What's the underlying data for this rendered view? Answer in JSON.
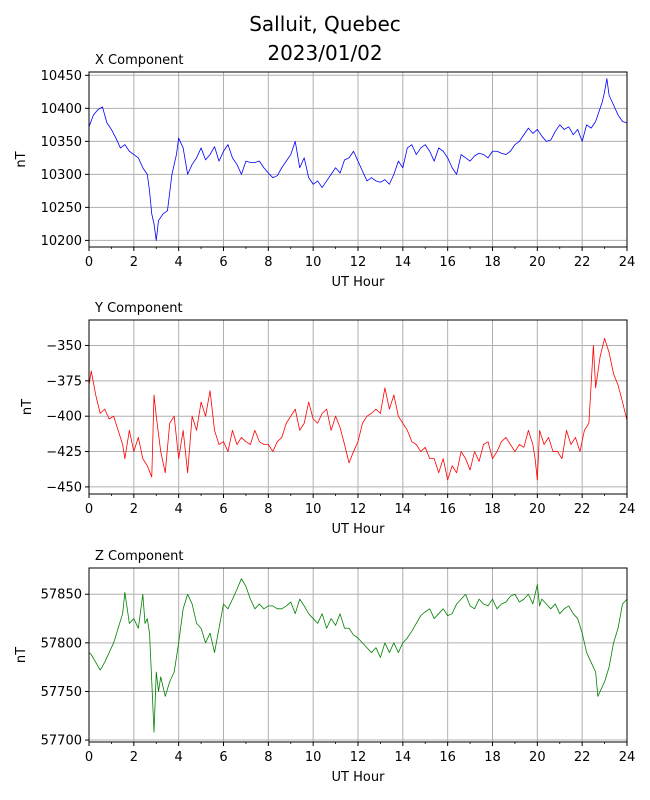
{
  "figure": {
    "title_line1": "Salluit, Quebec",
    "title_line2": "2023/01/02"
  },
  "chart_data": [
    {
      "type": "line",
      "title": "X Component",
      "xlabel": "UT Hour",
      "ylabel": "nT",
      "color": "#0000ff",
      "xlim": [
        0,
        24
      ],
      "ylim": [
        10190,
        10455
      ],
      "xticks": [
        0,
        2,
        4,
        6,
        8,
        10,
        12,
        14,
        16,
        18,
        20,
        22,
        24
      ],
      "yticks": [
        10200,
        10250,
        10300,
        10350,
        10400,
        10450
      ],
      "ytick_labels": [
        "10200",
        "10250",
        "10300",
        "10350",
        "10400",
        "10450"
      ],
      "grid": true,
      "x": [
        0,
        0.2,
        0.4,
        0.6,
        0.8,
        1.0,
        1.2,
        1.4,
        1.6,
        1.8,
        2.0,
        2.2,
        2.4,
        2.6,
        2.7,
        2.8,
        2.9,
        3.0,
        3.1,
        3.3,
        3.5,
        3.7,
        3.9,
        4.0,
        4.2,
        4.4,
        4.6,
        4.8,
        5.0,
        5.2,
        5.4,
        5.6,
        5.8,
        6.0,
        6.2,
        6.4,
        6.6,
        6.8,
        7.0,
        7.2,
        7.4,
        7.6,
        7.8,
        8.0,
        8.2,
        8.4,
        8.6,
        8.8,
        9.0,
        9.2,
        9.4,
        9.6,
        9.8,
        10.0,
        10.2,
        10.4,
        10.6,
        10.8,
        11.0,
        11.2,
        11.4,
        11.6,
        11.8,
        12.0,
        12.2,
        12.4,
        12.6,
        12.8,
        13.0,
        13.2,
        13.4,
        13.6,
        13.8,
        14.0,
        14.2,
        14.4,
        14.6,
        14.8,
        15.0,
        15.2,
        15.4,
        15.6,
        15.8,
        16.0,
        16.2,
        16.4,
        16.6,
        16.8,
        17.0,
        17.2,
        17.4,
        17.6,
        17.8,
        18.0,
        18.2,
        18.4,
        18.6,
        18.8,
        19.0,
        19.2,
        19.4,
        19.6,
        19.8,
        20.0,
        20.2,
        20.4,
        20.6,
        20.8,
        21.0,
        21.2,
        21.4,
        21.6,
        21.8,
        22.0,
        22.2,
        22.4,
        22.6,
        22.8,
        22.9,
        23.0,
        23.1,
        23.2,
        23.4,
        23.6,
        23.8,
        24.0
      ],
      "values": [
        10372,
        10390,
        10398,
        10402,
        10378,
        10368,
        10355,
        10340,
        10345,
        10335,
        10330,
        10325,
        10310,
        10300,
        10275,
        10240,
        10225,
        10200,
        10230,
        10240,
        10245,
        10300,
        10330,
        10355,
        10340,
        10300,
        10315,
        10325,
        10340,
        10322,
        10330,
        10342,
        10320,
        10335,
        10345,
        10325,
        10315,
        10300,
        10320,
        10318,
        10318,
        10320,
        10310,
        10302,
        10295,
        10298,
        10310,
        10320,
        10330,
        10350,
        10310,
        10325,
        10295,
        10285,
        10290,
        10280,
        10290,
        10300,
        10310,
        10302,
        10322,
        10325,
        10335,
        10320,
        10305,
        10290,
        10295,
        10290,
        10288,
        10292,
        10285,
        10300,
        10320,
        10310,
        10340,
        10345,
        10330,
        10340,
        10345,
        10335,
        10320,
        10340,
        10335,
        10325,
        10310,
        10300,
        10330,
        10325,
        10320,
        10328,
        10332,
        10330,
        10325,
        10335,
        10335,
        10332,
        10330,
        10335,
        10345,
        10350,
        10360,
        10370,
        10362,
        10368,
        10358,
        10350,
        10352,
        10365,
        10375,
        10368,
        10372,
        10360,
        10368,
        10350,
        10375,
        10370,
        10380,
        10400,
        10410,
        10425,
        10445,
        10420,
        10405,
        10390,
        10380,
        10378
      ]
    },
    {
      "type": "line",
      "title": "Y Component",
      "xlabel": "UT Hour",
      "ylabel": "nT",
      "color": "#ff0000",
      "xlim": [
        0,
        24
      ],
      "ylim": [
        -455,
        -332
      ],
      "xticks": [
        0,
        2,
        4,
        6,
        8,
        10,
        12,
        14,
        16,
        18,
        20,
        22,
        24
      ],
      "yticks": [
        -450,
        -425,
        -400,
        -375,
        -350
      ],
      "ytick_labels": [
        "−450",
        "−425",
        "−400",
        "−375",
        "−350"
      ],
      "grid": true,
      "x": [
        0,
        0.1,
        0.3,
        0.5,
        0.7,
        0.9,
        1.1,
        1.3,
        1.5,
        1.6,
        1.8,
        2.0,
        2.2,
        2.4,
        2.6,
        2.8,
        2.9,
        3.0,
        3.2,
        3.4,
        3.6,
        3.8,
        4.0,
        4.2,
        4.4,
        4.6,
        4.8,
        5.0,
        5.2,
        5.4,
        5.6,
        5.8,
        6.0,
        6.2,
        6.4,
        6.6,
        6.8,
        7.0,
        7.2,
        7.4,
        7.6,
        7.8,
        8.0,
        8.2,
        8.4,
        8.6,
        8.8,
        9.0,
        9.2,
        9.4,
        9.6,
        9.8,
        10.0,
        10.2,
        10.4,
        10.6,
        10.8,
        11.0,
        11.2,
        11.4,
        11.6,
        11.8,
        12.0,
        12.2,
        12.4,
        12.6,
        12.8,
        13.0,
        13.2,
        13.4,
        13.6,
        13.8,
        14.0,
        14.2,
        14.4,
        14.6,
        14.8,
        15.0,
        15.2,
        15.4,
        15.6,
        15.8,
        16.0,
        16.2,
        16.4,
        16.6,
        16.8,
        17.0,
        17.2,
        17.4,
        17.6,
        17.8,
        18.0,
        18.2,
        18.4,
        18.6,
        18.8,
        19.0,
        19.2,
        19.4,
        19.6,
        19.8,
        19.9,
        20.0,
        20.1,
        20.3,
        20.5,
        20.7,
        20.9,
        21.1,
        21.3,
        21.5,
        21.7,
        21.9,
        22.1,
        22.3,
        22.5,
        22.6,
        22.8,
        23.0,
        23.2,
        23.4,
        23.6,
        23.8,
        24.0
      ],
      "values": [
        -378,
        -368,
        -385,
        -398,
        -395,
        -402,
        -400,
        -410,
        -420,
        -430,
        -410,
        -425,
        -415,
        -430,
        -435,
        -443,
        -385,
        -400,
        -425,
        -440,
        -405,
        -400,
        -430,
        -410,
        -440,
        -400,
        -410,
        -390,
        -400,
        -382,
        -410,
        -420,
        -418,
        -425,
        -410,
        -420,
        -415,
        -418,
        -420,
        -410,
        -418,
        -420,
        -420,
        -425,
        -418,
        -415,
        -405,
        -400,
        -395,
        -410,
        -405,
        -390,
        -402,
        -405,
        -398,
        -395,
        -410,
        -400,
        -408,
        -420,
        -433,
        -425,
        -418,
        -405,
        -400,
        -398,
        -395,
        -398,
        -380,
        -395,
        -385,
        -400,
        -405,
        -410,
        -418,
        -420,
        -425,
        -422,
        -430,
        -430,
        -440,
        -430,
        -445,
        -435,
        -440,
        -425,
        -430,
        -438,
        -425,
        -432,
        -420,
        -418,
        -430,
        -425,
        -418,
        -415,
        -420,
        -425,
        -420,
        -422,
        -410,
        -420,
        -430,
        -445,
        -410,
        -420,
        -415,
        -425,
        -425,
        -430,
        -410,
        -420,
        -415,
        -425,
        -410,
        -405,
        -350,
        -380,
        -358,
        -345,
        -355,
        -370,
        -378,
        -390,
        -403
      ]
    },
    {
      "type": "line",
      "title": "Z Component",
      "xlabel": "UT Hour",
      "ylabel": "nT",
      "color": "#008000",
      "xlim": [
        0,
        24
      ],
      "ylim": [
        57698,
        57877
      ],
      "xticks": [
        0,
        2,
        4,
        6,
        8,
        10,
        12,
        14,
        16,
        18,
        20,
        22,
        24
      ],
      "yticks": [
        57700,
        57750,
        57800,
        57850
      ],
      "ytick_labels": [
        "57700",
        "57750",
        "57800",
        "57850"
      ],
      "grid": true,
      "x": [
        0,
        0.1,
        0.3,
        0.5,
        0.7,
        0.9,
        1.1,
        1.3,
        1.5,
        1.6,
        1.8,
        2.0,
        2.2,
        2.4,
        2.5,
        2.6,
        2.7,
        2.8,
        2.9,
        3.0,
        3.1,
        3.2,
        3.4,
        3.6,
        3.8,
        4.0,
        4.2,
        4.4,
        4.6,
        4.8,
        5.0,
        5.2,
        5.4,
        5.6,
        5.8,
        6.0,
        6.2,
        6.4,
        6.6,
        6.8,
        7.0,
        7.2,
        7.4,
        7.6,
        7.8,
        8.0,
        8.2,
        8.4,
        8.6,
        8.8,
        9.0,
        9.2,
        9.4,
        9.6,
        9.8,
        10.0,
        10.2,
        10.4,
        10.6,
        10.8,
        11.0,
        11.2,
        11.4,
        11.6,
        11.8,
        12.0,
        12.2,
        12.4,
        12.6,
        12.8,
        13.0,
        13.2,
        13.4,
        13.6,
        13.8,
        14.0,
        14.2,
        14.4,
        14.6,
        14.8,
        15.0,
        15.2,
        15.4,
        15.6,
        15.8,
        16.0,
        16.2,
        16.4,
        16.6,
        16.8,
        17.0,
        17.2,
        17.4,
        17.6,
        17.8,
        18.0,
        18.2,
        18.4,
        18.6,
        18.8,
        19.0,
        19.2,
        19.4,
        19.6,
        19.8,
        20.0,
        20.1,
        20.2,
        20.4,
        20.6,
        20.8,
        21.0,
        21.2,
        21.4,
        21.6,
        21.8,
        22.0,
        22.2,
        22.4,
        22.6,
        22.7,
        22.8,
        23.0,
        23.2,
        23.4,
        23.6,
        23.8,
        24.0
      ],
      "values": [
        57790,
        57788,
        57780,
        57772,
        57780,
        57790,
        57800,
        57815,
        57830,
        57852,
        57820,
        57825,
        57815,
        57850,
        57820,
        57825,
        57810,
        57760,
        57708,
        57770,
        57750,
        57765,
        57745,
        57760,
        57770,
        57800,
        57835,
        57850,
        57840,
        57820,
        57815,
        57800,
        57810,
        57790,
        57815,
        57840,
        57835,
        57845,
        57855,
        57866,
        57858,
        57845,
        57835,
        57840,
        57835,
        57838,
        57838,
        57835,
        57835,
        57838,
        57842,
        57830,
        57845,
        57838,
        57830,
        57825,
        57820,
        57830,
        57815,
        57825,
        57818,
        57830,
        57815,
        57815,
        57808,
        57805,
        57800,
        57795,
        57790,
        57795,
        57785,
        57800,
        57790,
        57800,
        57790,
        57800,
        57805,
        57812,
        57820,
        57828,
        57832,
        57835,
        57825,
        57830,
        57835,
        57828,
        57830,
        57840,
        57845,
        57850,
        57838,
        57835,
        57845,
        57840,
        57838,
        57845,
        57835,
        57840,
        57842,
        57848,
        57850,
        57842,
        57845,
        57850,
        57840,
        57860,
        57838,
        57845,
        57840,
        57835,
        57840,
        57830,
        57835,
        57838,
        57830,
        57825,
        57810,
        57790,
        57780,
        57770,
        57745,
        57750,
        57760,
        57775,
        57800,
        57815,
        57840,
        57845
      ]
    }
  ]
}
